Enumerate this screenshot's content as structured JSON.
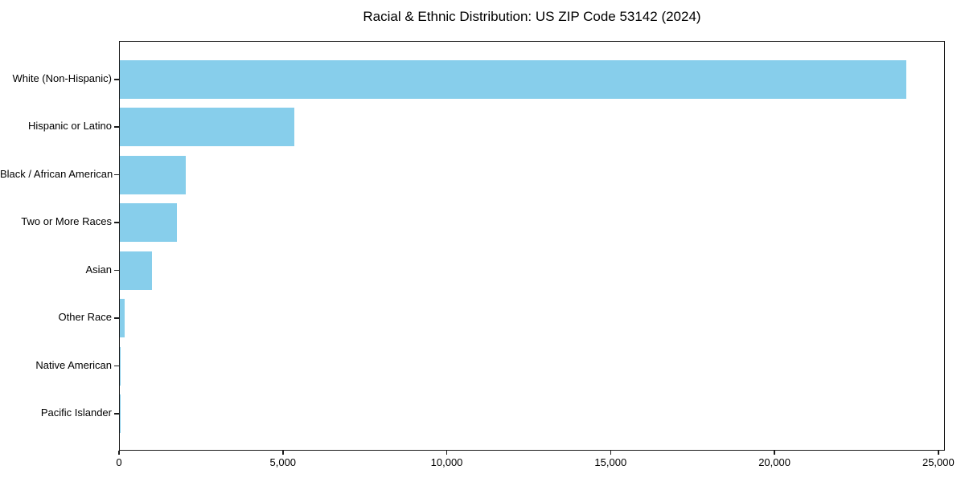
{
  "chart_data": {
    "type": "bar",
    "orientation": "horizontal",
    "title": "Racial & Ethnic Distribution: US ZIP Code 53142 (2024)",
    "categories": [
      "White (Non-Hispanic)",
      "Hispanic or Latino",
      "Black / African American",
      "Two or More Races",
      "Asian",
      "Other Race",
      "Native American",
      "Pacific Islander"
    ],
    "values": [
      24000,
      5330,
      2010,
      1745,
      980,
      140,
      30,
      10
    ],
    "xlabel": "",
    "ylabel": "",
    "xlim": [
      0,
      25200
    ],
    "xticks": [
      0,
      5000,
      10000,
      15000,
      20000,
      25000
    ],
    "xtick_labels": [
      "0",
      "5,000",
      "10,000",
      "15,000",
      "20,000",
      "25,000"
    ],
    "grid": false,
    "legend": false,
    "colors": {
      "bar": "#87CEEB",
      "axis": "#1a1a1a",
      "text": "#000000",
      "background": "#ffffff"
    }
  }
}
